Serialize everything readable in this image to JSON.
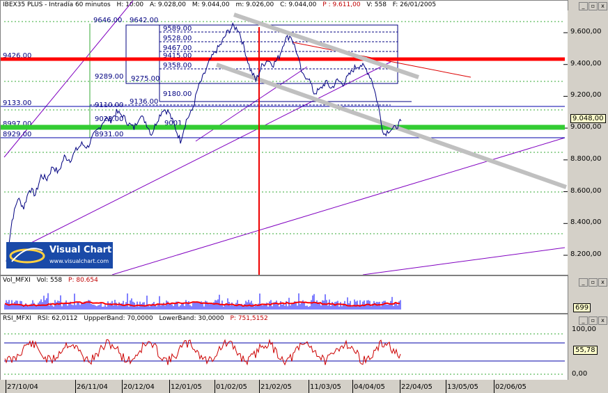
{
  "main_title": {
    "symbol": "IBEX35 PLUS - Intradía 60 minutos",
    "items": [
      "H: 10:00",
      "A: 9.028,00",
      "M: 9.044,00",
      "m: 9.026,00",
      "C: 9.044,00"
    ],
    "red": "P : 9.611,00",
    "tail": [
      "V: 558",
      "F: 26/01/2005"
    ]
  },
  "vol_title": {
    "name": "Vol_MFXI",
    "val": "Vol: 558",
    "red": "P: 80.654"
  },
  "rsi_title": {
    "name": "RSI_MFXI",
    "items": [
      "RSI: 62,0112",
      "UppperBand: 70,0000",
      "LowerBand: 30,0000"
    ],
    "red": "P: 751,5152"
  },
  "logo": {
    "title": "Visual Chart",
    "url": "www.visualchart.com"
  },
  "price_box": "9.048,00",
  "vol_box": "699",
  "rsi_box": "55,78",
  "date_labels": [
    "27/10/04",
    "26/11/04",
    "20/12/04",
    "12/01/05",
    "01/02/05",
    "21/02/05",
    "11/03/05",
    "04/04/05",
    "22/04/05",
    "13/05/05",
    "02/06/05"
  ],
  "colors": {
    "price": "#000080",
    "hline_red": "#ff0000",
    "hline_green": "#33cc33",
    "channel": "#8000c0",
    "trend_gray": "#c0c0c0",
    "fib": "#000080",
    "vol_blue": "#0000ff",
    "vol_red": "#ff0000",
    "rsi": "#cc0000",
    "rsi_band": "#0000aa"
  },
  "chart_data": [
    {
      "type": "line",
      "title": "IBEX35 PLUS - Intradía 60 minutos",
      "ylim": [
        8100,
        9700
      ],
      "y_ticks": [
        "9.600,00",
        "9.400,00",
        "9.200,00",
        "9.000,00",
        "8.800,00",
        "8.600,00",
        "8.400,00",
        "8.200,00"
      ],
      "y_tick_values": [
        9600,
        9400,
        9200,
        9000,
        8800,
        8600,
        8400,
        8200
      ],
      "levels": [
        {
          "label": "9426.00",
          "value": 9426
        },
        {
          "label": "9133.00",
          "value": 9133
        },
        {
          "label": "8997.00",
          "value": 8997
        },
        {
          "label": "8929.00",
          "value": 8929
        },
        {
          "label": "9646.00",
          "value": 9646
        },
        {
          "label": "9642.00",
          "value": 9642
        },
        {
          "label": "9589.00",
          "value": 9589
        },
        {
          "label": "9528.00",
          "value": 9528
        },
        {
          "label": "9467.00",
          "value": 9467
        },
        {
          "label": "9415.00",
          "value": 9415
        },
        {
          "label": "9358.00",
          "value": 9358
        },
        {
          "label": "9289.00",
          "value": 9289
        },
        {
          "label": "9275.00",
          "value": 9275
        },
        {
          "label": "9180.00",
          "value": 9180
        },
        {
          "label": "9136.00",
          "value": 9136
        },
        {
          "label": "9110.00",
          "value": 9110
        },
        {
          "label": "9023.00",
          "value": 9023
        },
        {
          "label": "9001",
          "value": 9001
        },
        {
          "label": "8931.00",
          "value": 8931
        }
      ],
      "series": [
        {
          "values": [
            8160,
            8420,
            8560,
            8500,
            8620,
            8580,
            8700,
            8680,
            8760,
            8720,
            8820,
            8800,
            8860,
            8900,
            8880,
            8950,
            9000,
            9060,
            9050,
            9100,
            9080,
            9030,
            9000,
            9080,
            9040,
            8960,
            9050,
            9120,
            9100,
            9010,
            8920,
            9050,
            9110,
            9250,
            9330,
            9420,
            9480,
            9530,
            9600,
            9640,
            9620,
            9500,
            9370,
            9300,
            9390,
            9430,
            9400,
            9450,
            9560,
            9580,
            9480,
            9330,
            9320,
            9220,
            9240,
            9290,
            9250,
            9300,
            9280,
            9330,
            9380,
            9400,
            9370,
            9300,
            9150,
            8960,
            8990,
            9000,
            9044
          ]
        }
      ]
    },
    {
      "type": "bar",
      "title": "Vol_MFXI",
      "y_ticks": [
        "699"
      ]
    },
    {
      "type": "line",
      "title": "RSI_MFXI",
      "ylim": [
        0,
        100
      ],
      "y_ticks": [
        "100,00",
        "0,00"
      ],
      "y_tick_values": [
        100,
        0
      ],
      "bands": [
        30,
        70
      ]
    }
  ]
}
